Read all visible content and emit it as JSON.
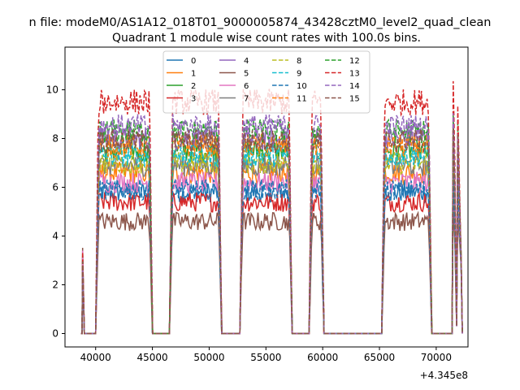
{
  "figure": {
    "suptitle": "n file: modeM0/AS1A12_018T01_9000005874_43428cztM0_level2_quad_clean",
    "title": "Quadrant 1 module wise count rates with 100.0s bins.",
    "x_offset_label": "+4.345e8"
  },
  "chart_data": {
    "type": "line",
    "title": "Quadrant 1 module wise count rates with 100.0s bins.",
    "xlabel": "",
    "ylabel": "",
    "x_offset": 434500000,
    "xlim": [
      37300,
      72800
    ],
    "ylim": [
      -0.55,
      11.75
    ],
    "x_ticks": [
      40000,
      45000,
      50000,
      55000,
      60000,
      65000,
      70000
    ],
    "y_ticks": [
      0,
      2,
      4,
      6,
      8,
      10
    ],
    "grid": false,
    "legend_location": "upper center",
    "legend_columns": 4,
    "segments": [
      {
        "start": 38800,
        "end": 39000,
        "shape": "spike",
        "base_value": 0
      },
      {
        "start": 40000,
        "end": 45000,
        "shape": "plateau",
        "base_value": 0
      },
      {
        "start": 46500,
        "end": 51100,
        "shape": "plateau",
        "base_value": 0
      },
      {
        "start": 52700,
        "end": 57300,
        "shape": "plateau",
        "base_value": 0
      },
      {
        "start": 58800,
        "end": 60100,
        "shape": "plateau",
        "base_value": 0
      },
      {
        "start": 65200,
        "end": 69600,
        "shape": "plateau",
        "base_value": 0
      },
      {
        "start": 71400,
        "end": 72200,
        "shape": "spike_pair",
        "base_value": 0
      }
    ],
    "series": [
      {
        "name": "0",
        "style": "solid",
        "color": "#1f77b4",
        "plateau_level": 5.8
      },
      {
        "name": "1",
        "style": "solid",
        "color": "#ff7f0e",
        "plateau_level": 6.6
      },
      {
        "name": "2",
        "style": "solid",
        "color": "#2ca02c",
        "plateau_level": 7.5
      },
      {
        "name": "3",
        "style": "solid",
        "color": "#d62728",
        "plateau_level": 5.4
      },
      {
        "name": "4",
        "style": "solid",
        "color": "#9467bd",
        "plateau_level": 8.0
      },
      {
        "name": "5",
        "style": "solid",
        "color": "#8c564b",
        "plateau_level": 4.6
      },
      {
        "name": "6",
        "style": "solid",
        "color": "#e377c2",
        "plateau_level": 6.2
      },
      {
        "name": "7",
        "style": "solid",
        "color": "#7f7f7f",
        "plateau_level": 6.9
      },
      {
        "name": "8",
        "style": "dashed",
        "color": "#bcbd22",
        "plateau_level": 7.0
      },
      {
        "name": "9",
        "style": "dashed",
        "color": "#17becf",
        "plateau_level": 7.3
      },
      {
        "name": "10",
        "style": "dashed",
        "color": "#1f77b4",
        "plateau_level": 5.9
      },
      {
        "name": "11",
        "style": "dashed",
        "color": "#ff7f0e",
        "plateau_level": 7.7
      },
      {
        "name": "12",
        "style": "dashed",
        "color": "#2ca02c",
        "plateau_level": 8.3
      },
      {
        "name": "13",
        "style": "dashed",
        "color": "#d62728",
        "plateau_level": 9.5
      },
      {
        "name": "14",
        "style": "dashed",
        "color": "#9467bd",
        "plateau_level": 8.5
      },
      {
        "name": "15",
        "style": "dashed",
        "color": "#8c564b",
        "plateau_level": 7.9
      }
    ]
  }
}
